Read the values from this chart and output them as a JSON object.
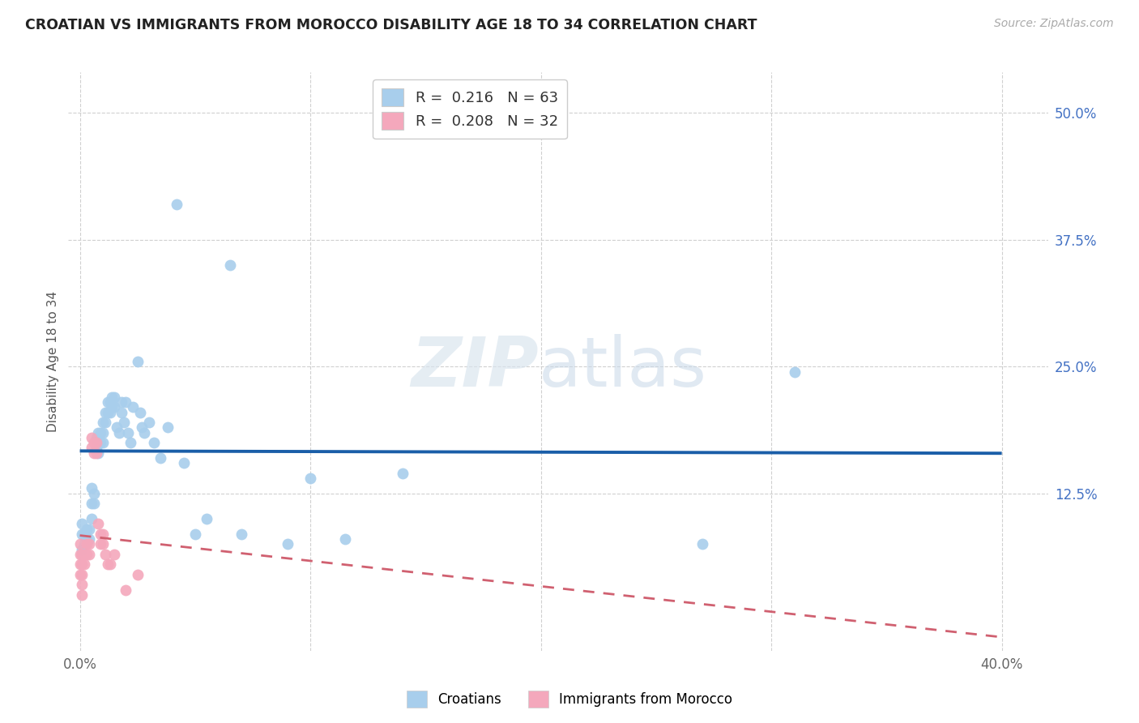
{
  "title": "CROATIAN VS IMMIGRANTS FROM MOROCCO DISABILITY AGE 18 TO 34 CORRELATION CHART",
  "source": "Source: ZipAtlas.com",
  "ylabel": "Disability Age 18 to 34",
  "xlabel_ticks_labels": [
    "0.0%",
    "",
    "",
    "",
    "40.0%"
  ],
  "xlabel_vals": [
    0.0,
    0.1,
    0.2,
    0.3,
    0.4
  ],
  "xlabel_minor_vals": [
    0.05,
    0.1,
    0.15,
    0.2,
    0.25,
    0.3,
    0.35
  ],
  "ylabel_ticks": [
    "12.5%",
    "25.0%",
    "37.5%",
    "50.0%"
  ],
  "ylabel_vals": [
    0.125,
    0.25,
    0.375,
    0.5
  ],
  "xlim": [
    -0.005,
    0.42
  ],
  "ylim": [
    -0.03,
    0.54
  ],
  "croatian_R": 0.216,
  "croatian_N": 63,
  "morocco_R": 0.208,
  "morocco_N": 32,
  "croatian_color": "#A8CEEC",
  "morocco_color": "#F4A8BC",
  "trend_croatian_color": "#1A5EA8",
  "trend_morocco_color": "#D06070",
  "background_color": "#ffffff",
  "watermark_zip": "ZIP",
  "watermark_atlas": "atlas",
  "legend_label_croatian": "Croatians",
  "legend_label_morocco": "Immigrants from Morocco",
  "croatian_x": [
    0.001,
    0.001,
    0.001,
    0.002,
    0.002,
    0.003,
    0.003,
    0.004,
    0.004,
    0.005,
    0.005,
    0.005,
    0.006,
    0.006,
    0.007,
    0.007,
    0.008,
    0.008,
    0.008,
    0.009,
    0.009,
    0.01,
    0.01,
    0.01,
    0.011,
    0.011,
    0.012,
    0.012,
    0.013,
    0.013,
    0.014,
    0.014,
    0.015,
    0.015,
    0.016,
    0.017,
    0.018,
    0.018,
    0.019,
    0.02,
    0.021,
    0.022,
    0.023,
    0.025,
    0.026,
    0.027,
    0.028,
    0.03,
    0.032,
    0.035,
    0.038,
    0.042,
    0.045,
    0.05,
    0.055,
    0.065,
    0.07,
    0.09,
    0.1,
    0.115,
    0.14,
    0.27,
    0.31
  ],
  "croatian_y": [
    0.095,
    0.085,
    0.07,
    0.085,
    0.075,
    0.09,
    0.08,
    0.09,
    0.08,
    0.13,
    0.115,
    0.1,
    0.125,
    0.115,
    0.18,
    0.17,
    0.185,
    0.175,
    0.165,
    0.185,
    0.175,
    0.195,
    0.185,
    0.175,
    0.205,
    0.195,
    0.215,
    0.205,
    0.215,
    0.205,
    0.22,
    0.21,
    0.22,
    0.21,
    0.19,
    0.185,
    0.215,
    0.205,
    0.195,
    0.215,
    0.185,
    0.175,
    0.21,
    0.255,
    0.205,
    0.19,
    0.185,
    0.195,
    0.175,
    0.16,
    0.19,
    0.41,
    0.155,
    0.085,
    0.1,
    0.35,
    0.085,
    0.075,
    0.14,
    0.08,
    0.145,
    0.075,
    0.245
  ],
  "morocco_x": [
    0.0,
    0.0,
    0.0,
    0.0,
    0.001,
    0.001,
    0.001,
    0.001,
    0.001,
    0.002,
    0.002,
    0.003,
    0.003,
    0.004,
    0.004,
    0.005,
    0.005,
    0.006,
    0.006,
    0.007,
    0.007,
    0.008,
    0.009,
    0.009,
    0.01,
    0.01,
    0.011,
    0.012,
    0.013,
    0.015,
    0.02,
    0.025
  ],
  "morocco_y": [
    0.075,
    0.065,
    0.055,
    0.045,
    0.065,
    0.055,
    0.045,
    0.035,
    0.025,
    0.065,
    0.055,
    0.075,
    0.065,
    0.075,
    0.065,
    0.18,
    0.17,
    0.175,
    0.165,
    0.175,
    0.165,
    0.095,
    0.085,
    0.075,
    0.085,
    0.075,
    0.065,
    0.055,
    0.055,
    0.065,
    0.03,
    0.045
  ]
}
